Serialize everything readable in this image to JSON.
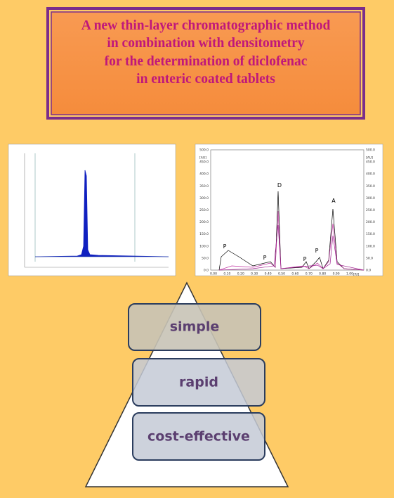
{
  "title": {
    "lines": [
      "A new thin-layer chromatographic method",
      "in combination with densitometry",
      "for the  determination of diclofenac",
      "in enteric coated tablets"
    ]
  },
  "chromatogram_2": {
    "left_unit": "[AU]",
    "right_unit": "[AU]",
    "x_unit": "[Rf]",
    "yticks": [
      "0.0",
      "50.0",
      "100.0",
      "150.0",
      "200.0",
      "250.0",
      "300.0",
      "350.0",
      "400.0",
      "450.0",
      "500.0"
    ],
    "xticks": [
      "0.00",
      "0.10",
      "0.20",
      "0.30",
      "0.40",
      "0.50",
      "0.60",
      "0.70",
      "0.80",
      "0.90",
      "1.00"
    ],
    "peaks": [
      "P",
      "P",
      "D",
      "P",
      "P",
      "A"
    ]
  },
  "pyramid": {
    "levels": [
      "simple",
      "rapid",
      "cost-effective"
    ]
  }
}
